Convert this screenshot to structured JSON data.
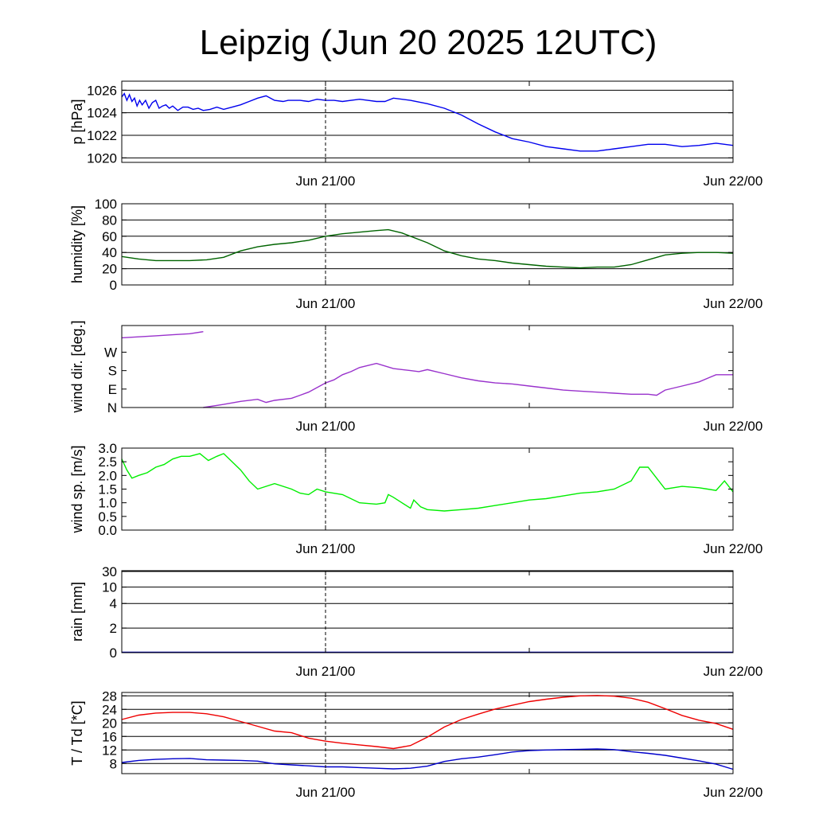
{
  "title": "Leipzig (Jun 20 2025 12UTC)",
  "chart_data": [
    {
      "type": "line",
      "ylabel": "p [hPa]",
      "x_range_hours": [
        0,
        36
      ],
      "ylim": [
        1019.6,
        1026.8
      ],
      "yticks": [
        1020,
        1022,
        1024,
        1026
      ],
      "ytick_labels": [
        "1020",
        "1022",
        "1024",
        "1026"
      ],
      "grid_y": true,
      "xtick_labels": [
        "Jun 21/00",
        "Jun 22/00"
      ],
      "xtick_hours": [
        12,
        36
      ],
      "series": [
        {
          "color": "#0000ee",
          "x": [
            0,
            0.15,
            0.3,
            0.45,
            0.6,
            0.75,
            0.9,
            1.05,
            1.2,
            1.4,
            1.6,
            1.8,
            2.0,
            2.2,
            2.4,
            2.6,
            2.8,
            3.0,
            3.3,
            3.6,
            3.9,
            4.2,
            4.5,
            4.8,
            5.2,
            5.6,
            6.0,
            6.5,
            7.0,
            7.5,
            8.0,
            8.5,
            9.0,
            9.5,
            9.8,
            10.5,
            11.0,
            11.5,
            12.0,
            12.5,
            13.0,
            14.0,
            15.0,
            15.5,
            16.0,
            17.0,
            18.0,
            19.0,
            20.0,
            21.0,
            22.0,
            23.0,
            24.0,
            25.0,
            26.0,
            27.0,
            28.0,
            29.0,
            30.0,
            31.0,
            32.0,
            33.0,
            34.0,
            35.0,
            36.0
          ],
          "y": [
            1025.4,
            1025.7,
            1025.1,
            1025.6,
            1025.0,
            1025.3,
            1024.6,
            1025.1,
            1024.7,
            1025.1,
            1024.4,
            1024.9,
            1025.1,
            1024.4,
            1024.6,
            1024.7,
            1024.4,
            1024.6,
            1024.2,
            1024.5,
            1024.5,
            1024.3,
            1024.4,
            1024.2,
            1024.3,
            1024.5,
            1024.3,
            1024.5,
            1024.7,
            1025.0,
            1025.3,
            1025.5,
            1025.1,
            1025.0,
            1025.1,
            1025.1,
            1025.0,
            1025.2,
            1025.1,
            1025.1,
            1025.0,
            1025.2,
            1025.0,
            1025.0,
            1025.3,
            1025.1,
            1024.8,
            1024.4,
            1023.8,
            1023.0,
            1022.3,
            1021.7,
            1021.4,
            1021.0,
            1020.8,
            1020.6,
            1020.6,
            1020.8,
            1021.0,
            1021.2,
            1021.2,
            1021.0,
            1021.1,
            1021.3,
            1021.1
          ]
        }
      ]
    },
    {
      "type": "line",
      "ylabel": "humidity [%]",
      "x_range_hours": [
        0,
        36
      ],
      "ylim": [
        0,
        100
      ],
      "yticks": [
        0,
        20,
        40,
        60,
        80,
        100
      ],
      "ytick_labels": [
        "0",
        "20",
        "40",
        "60",
        "80",
        "100"
      ],
      "grid_y": true,
      "xtick_labels": [
        "Jun 21/00",
        "Jun 22/00"
      ],
      "xtick_hours": [
        12,
        36
      ],
      "series": [
        {
          "color": "#006400",
          "x": [
            0,
            1,
            2,
            3,
            4,
            5,
            6,
            7,
            8,
            9,
            10,
            11,
            12,
            13,
            14,
            15,
            15.7,
            16.5,
            18,
            19,
            20,
            21,
            22,
            23,
            24,
            25,
            26,
            27,
            28,
            29,
            30,
            31,
            32,
            33,
            34,
            35,
            36
          ],
          "y": [
            35,
            32,
            30,
            30,
            30,
            31,
            34,
            42,
            47,
            50,
            52,
            55,
            60,
            63,
            65,
            67,
            68,
            64,
            52,
            42,
            36,
            32,
            30,
            27,
            25,
            23,
            22,
            21,
            22,
            22,
            25,
            31,
            37,
            39,
            40,
            40,
            39
          ]
        }
      ]
    },
    {
      "type": "line",
      "ylabel": "wind dir. [deg.]",
      "x_range_hours": [
        0,
        36
      ],
      "ylim": [
        0,
        400
      ],
      "yticks": [
        0,
        90,
        180,
        270
      ],
      "ytick_labels": [
        "N",
        "E",
        "S",
        "W"
      ],
      "grid_y": false,
      "xtick_labels": [
        "Jun 21/00",
        "Jun 22/00"
      ],
      "xtick_hours": [
        12,
        36
      ],
      "series": [
        {
          "color": "#9932cc",
          "x": [
            0,
            1,
            2,
            3,
            4,
            4.8
          ],
          "y": [
            340,
            345,
            350,
            355,
            360,
            370
          ]
        },
        {
          "color": "#9932cc",
          "x": [
            4.8,
            6,
            7,
            8,
            8.5,
            9,
            10,
            10.5,
            11,
            12,
            12.5,
            13,
            13.5,
            14,
            15,
            16,
            17,
            17.5,
            18,
            19,
            20,
            21,
            22,
            23,
            24,
            25,
            26,
            27,
            28,
            29,
            30,
            31,
            31.5,
            32,
            33,
            34,
            35,
            36
          ],
          "y": [
            0,
            15,
            30,
            40,
            25,
            35,
            45,
            60,
            75,
            120,
            135,
            160,
            175,
            195,
            215,
            190,
            180,
            175,
            185,
            165,
            145,
            130,
            120,
            115,
            105,
            95,
            85,
            80,
            75,
            70,
            65,
            65,
            60,
            85,
            105,
            125,
            160,
            160
          ]
        }
      ]
    },
    {
      "type": "line",
      "ylabel": "wind sp. [m/s]",
      "x_range_hours": [
        0,
        36
      ],
      "ylim": [
        0,
        3.0
      ],
      "yticks": [
        0,
        0.5,
        1.0,
        1.5,
        2.0,
        2.5,
        3.0
      ],
      "ytick_labels": [
        "0.0",
        "0.5",
        "1.0",
        "1.5",
        "2.0",
        "2.5",
        "3.0"
      ],
      "grid_y": false,
      "xtick_labels": [
        "Jun 21/00",
        "Jun 22/00"
      ],
      "xtick_hours": [
        12,
        36
      ],
      "series": [
        {
          "color": "#00ee00",
          "x": [
            0,
            0.3,
            0.6,
            1,
            1.5,
            2,
            2.5,
            3,
            3.5,
            4,
            4.6,
            5.1,
            5.6,
            6,
            6.5,
            7,
            7.5,
            8,
            9,
            10,
            10.5,
            11,
            11.5,
            12,
            13,
            14,
            15,
            15.5,
            15.7,
            16,
            16.5,
            17,
            17.2,
            17.6,
            18,
            19,
            20,
            21,
            22,
            23,
            24,
            25,
            26,
            27,
            28,
            29,
            30,
            30.3,
            30.5,
            31,
            32,
            33,
            34,
            34.5,
            35,
            35.5,
            36
          ],
          "y": [
            2.6,
            2.2,
            1.9,
            2.0,
            2.1,
            2.3,
            2.4,
            2.6,
            2.7,
            2.7,
            2.8,
            2.55,
            2.7,
            2.8,
            2.5,
            2.2,
            1.8,
            1.5,
            1.7,
            1.5,
            1.35,
            1.3,
            1.5,
            1.4,
            1.3,
            1.0,
            0.95,
            1.0,
            1.3,
            1.2,
            1.0,
            0.8,
            1.1,
            0.85,
            0.75,
            0.7,
            0.75,
            0.8,
            0.9,
            1.0,
            1.1,
            1.15,
            1.25,
            1.35,
            1.4,
            1.5,
            1.8,
            2.1,
            2.3,
            2.3,
            1.5,
            1.6,
            1.55,
            1.5,
            1.45,
            1.8,
            1.4
          ]
        }
      ]
    },
    {
      "type": "line",
      "ylabel": "rain [mm]",
      "x_range_hours": [
        0,
        36
      ],
      "yticks": [
        0,
        2,
        4,
        10,
        30
      ],
      "ytick_labels": [
        "0",
        "2",
        "4",
        "10",
        "30"
      ],
      "ytick_fractions": [
        0,
        0.3,
        0.6,
        0.8,
        0.99
      ],
      "grid_y": true,
      "xtick_labels": [
        "Jun 21/00",
        "Jun 22/00"
      ],
      "xtick_hours": [
        12,
        36
      ],
      "series": [
        {
          "color": "#0000aa",
          "x": [
            0,
            36
          ],
          "y": [
            0,
            0
          ]
        }
      ]
    },
    {
      "type": "line",
      "ylabel": "T / Td [*C]",
      "x_range_hours": [
        0,
        36
      ],
      "ylim": [
        5,
        29
      ],
      "yticks": [
        8,
        12,
        16,
        20,
        24,
        28
      ],
      "ytick_labels": [
        "8",
        "12",
        "16",
        "20",
        "24",
        "28"
      ],
      "grid_y": true,
      "xtick_labels": [
        "Jun 21/00",
        "Jun 22/00"
      ],
      "xtick_hours": [
        12,
        36
      ],
      "series": [
        {
          "color": "#ee0000",
          "x": [
            0,
            1,
            2,
            3,
            4,
            5,
            6,
            7,
            8,
            9,
            10,
            11,
            12,
            13,
            14,
            15,
            16,
            17,
            18,
            19,
            20,
            21,
            22,
            23,
            24,
            25,
            26,
            27,
            28,
            29,
            30,
            31,
            32,
            33,
            34,
            35,
            36
          ],
          "y": [
            21,
            22.3,
            22.9,
            23.1,
            23.1,
            22.7,
            21.8,
            20.4,
            19.0,
            17.6,
            17.1,
            15.5,
            14.6,
            14.0,
            13.5,
            13.0,
            12.4,
            13.3,
            15.8,
            18.8,
            21.0,
            22.6,
            24.1,
            25.2,
            26.3,
            27.0,
            27.6,
            28.0,
            28.1,
            27.9,
            27.3,
            26.1,
            24.2,
            22.2,
            20.8,
            19.8,
            18.1
          ]
        },
        {
          "color": "#0000cc",
          "x": [
            0,
            1,
            2,
            3,
            4,
            5,
            6,
            7,
            8,
            9,
            10,
            11,
            12,
            13,
            14,
            15,
            16,
            17,
            18,
            19,
            20,
            21,
            22,
            23,
            24,
            25,
            26,
            27,
            28,
            29,
            30,
            31,
            32,
            33,
            34,
            35,
            36
          ],
          "y": [
            8.3,
            8.9,
            9.2,
            9.4,
            9.5,
            9.1,
            9.0,
            8.9,
            8.7,
            7.9,
            7.6,
            7.3,
            7.0,
            7.0,
            6.8,
            6.6,
            6.4,
            6.6,
            7.2,
            8.6,
            9.4,
            9.9,
            10.6,
            11.4,
            11.8,
            12.0,
            12.1,
            12.2,
            12.3,
            12.1,
            11.5,
            11.0,
            10.4,
            9.6,
            8.8,
            7.8,
            6.3
          ]
        }
      ]
    }
  ]
}
